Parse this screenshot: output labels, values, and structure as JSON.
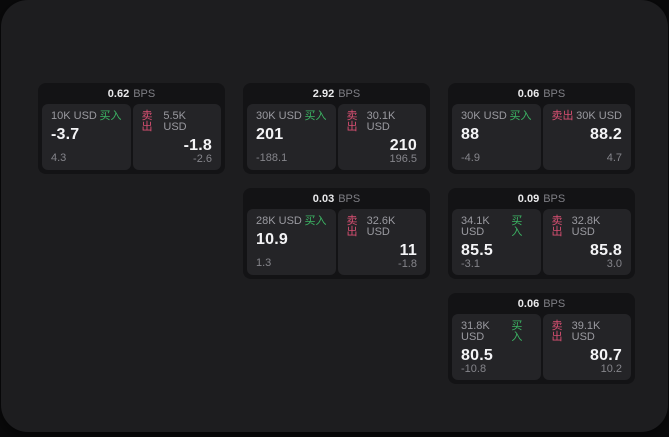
{
  "labels": {
    "buy": "买入",
    "sell": "卖出",
    "bps": "BPS"
  },
  "colors": {
    "buy_green": "#3cb564",
    "sell_pink": "#d84f72",
    "panel_bg": "#1d1d1f",
    "card_bg": "#131315",
    "subpanel_bg": "#242427"
  },
  "cards": [
    {
      "col": 1,
      "row": 1,
      "bps": "0.62",
      "buy_amount": "10K USD",
      "sell_amount": "5.5K USD",
      "buy_value": "-3.7",
      "sell_value": "-1.8",
      "buy_delta": "4.3",
      "sell_delta": "-2.6"
    },
    {
      "col": 2,
      "row": 1,
      "bps": "2.92",
      "buy_amount": "30K USD",
      "sell_amount": "30.1K USD",
      "buy_value": "201",
      "sell_value": "210",
      "buy_delta": "-188.1",
      "sell_delta": "196.5"
    },
    {
      "col": 2,
      "row": 2,
      "bps": "0.03",
      "buy_amount": "28K USD",
      "sell_amount": "32.6K USD",
      "buy_value": "10.9",
      "sell_value": "11",
      "buy_delta": "1.3",
      "sell_delta": "-1.8"
    },
    {
      "col": 3,
      "row": 1,
      "bps": "0.06",
      "buy_amount": "30K USD",
      "sell_amount": "30K USD",
      "buy_value": "88",
      "sell_value": "88.2",
      "buy_delta": "-4.9",
      "sell_delta": "4.7"
    },
    {
      "col": 3,
      "row": 2,
      "bps": "0.09",
      "buy_amount": "34.1K USD",
      "sell_amount": "32.8K USD",
      "buy_value": "85.5",
      "sell_value": "85.8",
      "buy_delta": "-3.1",
      "sell_delta": "3.0"
    },
    {
      "col": 3,
      "row": 3,
      "bps": "0.06",
      "buy_amount": "31.8K USD",
      "sell_amount": "39.1K USD",
      "buy_value": "80.5",
      "sell_value": "80.7",
      "buy_delta": "-10.8",
      "sell_delta": "10.2"
    }
  ]
}
